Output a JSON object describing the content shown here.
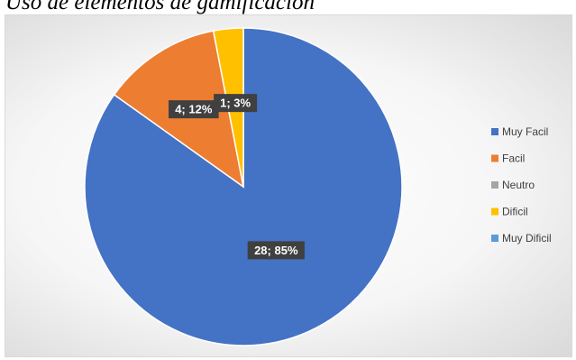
{
  "title": "Uso de elementos de gamificación",
  "chart_data": {
    "type": "pie",
    "title": "",
    "legend_position": "right",
    "slices": [
      {
        "label": "Muy Facil",
        "count": 28,
        "percent": 85,
        "data_label": "28; 85%",
        "color": "#4472C4"
      },
      {
        "label": "Facil",
        "count": 4,
        "percent": 12,
        "data_label": "4; 12%",
        "color": "#ED7D31"
      },
      {
        "label": "Neutro",
        "count": 0,
        "percent": 0,
        "data_label": "",
        "color": "#A5A5A5"
      },
      {
        "label": "Dificil",
        "count": 1,
        "percent": 3,
        "data_label": "1; 3%",
        "color": "#FFC000"
      },
      {
        "label": "Muy Dificil",
        "count": 0,
        "percent": 0,
        "data_label": "",
        "color": "#5B9BD5"
      }
    ]
  }
}
